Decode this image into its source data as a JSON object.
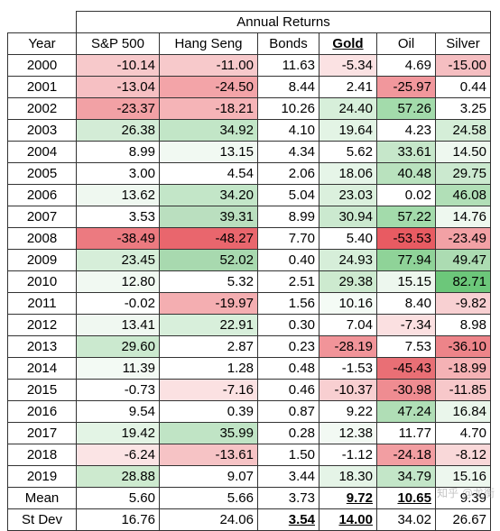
{
  "title": "Annual Returns",
  "headers": [
    "Year",
    "S&P 500",
    "Hang  Seng",
    "Bonds",
    "Gold",
    "Oil",
    "Silver"
  ],
  "header_bold": [
    false,
    false,
    false,
    false,
    true,
    false,
    false
  ],
  "rows": [
    {
      "year": "2000",
      "vals": [
        "-10.14",
        "-11.00",
        "11.63",
        "-5.34",
        "4.69",
        "-15.00"
      ],
      "colors": [
        "#f7c9cb",
        "#f7c9cb",
        "#ffffff",
        "#fbe2e3",
        "#ffffff",
        "#f5bec1"
      ]
    },
    {
      "year": "2001",
      "vals": [
        "-13.04",
        "-24.50",
        "8.44",
        "2.41",
        "-25.97",
        "0.44"
      ],
      "colors": [
        "#f6c0c3",
        "#f3a4a8",
        "#ffffff",
        "#ffffff",
        "#f1979c",
        "#ffffff"
      ]
    },
    {
      "year": "2002",
      "vals": [
        "-23.37",
        "-18.21",
        "10.26",
        "24.40",
        "57.26",
        "3.25"
      ],
      "colors": [
        "#f2a1a5",
        "#f5b4b7",
        "#ffffff",
        "#d7efda",
        "#a3dbab",
        "#ffffff"
      ]
    },
    {
      "year": "2003",
      "vals": [
        "26.38",
        "34.92",
        "4.10",
        "19.64",
        "4.23",
        "24.58"
      ],
      "colors": [
        "#d3ecd6",
        "#c2e6c7",
        "#ffffff",
        "#e3f4e5",
        "#ffffff",
        "#d5eed8"
      ]
    },
    {
      "year": "2004",
      "vals": [
        "8.99",
        "13.15",
        "4.34",
        "5.62",
        "33.61",
        "14.50"
      ],
      "colors": [
        "#ffffff",
        "#f1f9f2",
        "#ffffff",
        "#ffffff",
        "#c6e7ca",
        "#eef8ef"
      ]
    },
    {
      "year": "2005",
      "vals": [
        "3.00",
        "4.54",
        "2.06",
        "18.06",
        "40.48",
        "29.75"
      ],
      "colors": [
        "#ffffff",
        "#ffffff",
        "#ffffff",
        "#e6f5e8",
        "#b9e2be",
        "#cbe9cf"
      ]
    },
    {
      "year": "2006",
      "vals": [
        "13.62",
        "34.20",
        "5.04",
        "23.03",
        "0.02",
        "46.08"
      ],
      "colors": [
        "#eff8f0",
        "#c3e6c8",
        "#ffffff",
        "#dbf0dd",
        "#ffffff",
        "#b1dfb7"
      ]
    },
    {
      "year": "2007",
      "vals": [
        "3.53",
        "39.31",
        "8.99",
        "30.94",
        "57.22",
        "14.76"
      ],
      "colors": [
        "#ffffff",
        "#badfbf",
        "#ffffff",
        "#cbe9cf",
        "#a3dbab",
        "#eef8ef"
      ]
    },
    {
      "year": "2008",
      "vals": [
        "-38.49",
        "-48.27",
        "7.70",
        "5.40",
        "-53.53",
        "-23.49"
      ],
      "colors": [
        "#ec7a80",
        "#e9666d",
        "#ffffff",
        "#ffffff",
        "#e85b62",
        "#f2a1a5"
      ]
    },
    {
      "year": "2009",
      "vals": [
        "23.45",
        "52.02",
        "0.40",
        "24.93",
        "77.94",
        "49.47"
      ],
      "colors": [
        "#d6eed9",
        "#a8d9af",
        "#ffffff",
        "#d6eed9",
        "#8fd398",
        "#acdcb2"
      ]
    },
    {
      "year": "2010",
      "vals": [
        "12.80",
        "5.32",
        "2.51",
        "29.38",
        "15.15",
        "82.71"
      ],
      "colors": [
        "#f1f9f2",
        "#ffffff",
        "#ffffff",
        "#cdeacf",
        "#edf7ee",
        "#6cc77a"
      ]
    },
    {
      "year": "2011",
      "vals": [
        "-0.02",
        "-19.97",
        "1.56",
        "10.16",
        "8.40",
        "-9.82"
      ],
      "colors": [
        "#ffffff",
        "#f4aeb1",
        "#ffffff",
        "#f4fbf5",
        "#ffffff",
        "#f8d0d2"
      ]
    },
    {
      "year": "2012",
      "vals": [
        "13.41",
        "22.91",
        "0.30",
        "7.04",
        "-7.34",
        "8.98"
      ],
      "colors": [
        "#f0f8f1",
        "#d8efdb",
        "#ffffff",
        "#ffffff",
        "#fbe0e1",
        "#ffffff"
      ]
    },
    {
      "year": "2013",
      "vals": [
        "29.60",
        "2.87",
        "0.23",
        "-28.19",
        "7.53",
        "-36.10"
      ],
      "colors": [
        "#cbe9cf",
        "#ffffff",
        "#ffffff",
        "#f19499",
        "#ffffff",
        "#ed8489"
      ]
    },
    {
      "year": "2014",
      "vals": [
        "11.39",
        "1.28",
        "0.48",
        "-1.53",
        "-45.43",
        "-18.99"
      ],
      "colors": [
        "#f3faf4",
        "#ffffff",
        "#ffffff",
        "#ffffff",
        "#e96f75",
        "#f5b2b5"
      ]
    },
    {
      "year": "2015",
      "vals": [
        "-0.73",
        "-7.16",
        "0.46",
        "-10.37",
        "-30.98",
        "-11.85"
      ],
      "colors": [
        "#ffffff",
        "#fbe1e2",
        "#ffffff",
        "#f8cfd1",
        "#ef8c91",
        "#f7c8ca"
      ]
    },
    {
      "year": "2016",
      "vals": [
        "9.54",
        "0.39",
        "0.87",
        "9.22",
        "47.24",
        "16.84"
      ],
      "colors": [
        "#ffffff",
        "#ffffff",
        "#ffffff",
        "#ffffff",
        "#b0deb6",
        "#eaf6eb"
      ]
    },
    {
      "year": "2017",
      "vals": [
        "19.42",
        "35.99",
        "0.28",
        "12.38",
        "11.77",
        "4.70"
      ],
      "colors": [
        "#e3f4e5",
        "#c0e4c5",
        "#ffffff",
        "#f2f9f3",
        "#ffffff",
        "#ffffff"
      ]
    },
    {
      "year": "2018",
      "vals": [
        "-6.24",
        "-13.61",
        "1.50",
        "-1.12",
        "-24.18",
        "-8.12"
      ],
      "colors": [
        "#fbe4e5",
        "#f6c3c5",
        "#ffffff",
        "#ffffff",
        "#f29ea2",
        "#f9d8d9"
      ]
    },
    {
      "year": "2019",
      "vals": [
        "28.88",
        "9.07",
        "3.44",
        "18.30",
        "34.79",
        "15.16"
      ],
      "colors": [
        "#cdeacf",
        "#ffffff",
        "#ffffff",
        "#e5f4e7",
        "#c3e6c8",
        "#edf7ee"
      ]
    }
  ],
  "summary": [
    {
      "label": "Mean",
      "vals": [
        "5.60",
        "5.66",
        "3.73",
        "9.72",
        "10.65",
        "9.39"
      ],
      "bold": [
        false,
        false,
        false,
        true,
        true,
        false
      ]
    },
    {
      "label": "St Dev",
      "vals": [
        "16.76",
        "24.06",
        "3.54",
        "14.00",
        "34.02",
        "26.67"
      ],
      "bold": [
        false,
        false,
        true,
        true,
        false,
        false
      ]
    }
  ],
  "watermark": "知乎 @龙衡"
}
